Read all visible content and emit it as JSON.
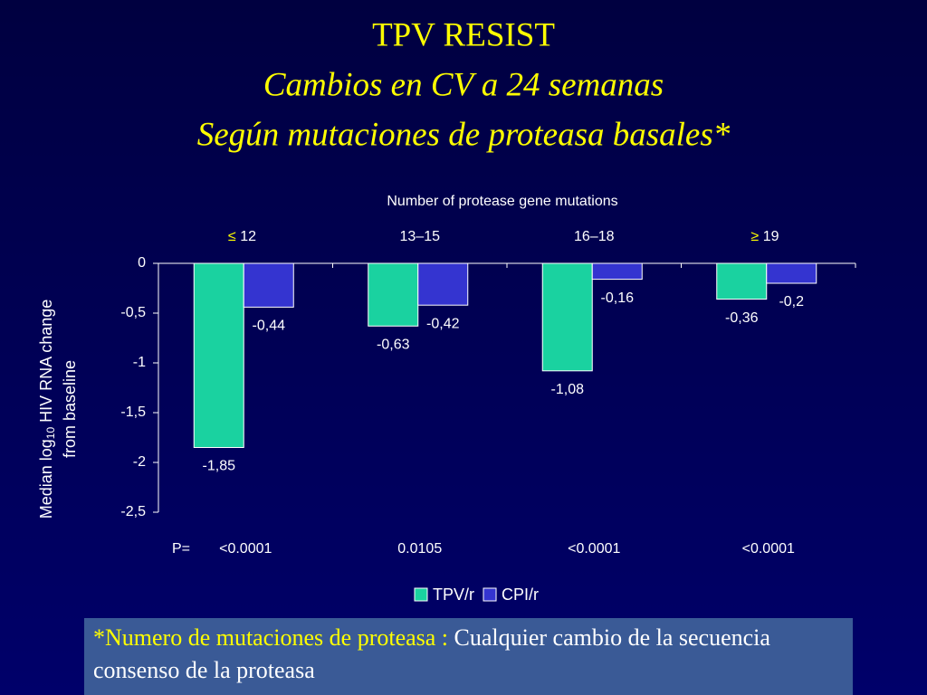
{
  "header": {
    "title": "TPV RESIST",
    "subtitle1": "Cambios en CV a  24  semanas",
    "subtitle2": "Según mutaciones de proteasa basales*"
  },
  "chart_data": {
    "type": "bar",
    "x_title": "Number of protease gene mutations",
    "category_prefixes": [
      "≤",
      null,
      null,
      "≥"
    ],
    "categories": [
      "12",
      "13–15",
      "16–18",
      "19"
    ],
    "series": [
      {
        "name": "TPV/r",
        "color": "#1ad2a0",
        "values": [
          -1.85,
          -0.63,
          -1.08,
          -0.36
        ],
        "value_labels": [
          "-1,85",
          "-0,63",
          "-1,08",
          "-0,36"
        ]
      },
      {
        "name": "CPI/r",
        "color": "#3434d0",
        "values": [
          -0.44,
          -0.42,
          -0.16,
          -0.2
        ],
        "value_labels": [
          "-0,44",
          "-0,42",
          "-0,16",
          "-0,2"
        ]
      }
    ],
    "ylim": [
      -2.5,
      0
    ],
    "yticks": [
      0,
      {
        "value": -0.5,
        "label": "-0,5"
      },
      -1,
      {
        "value": -1.5,
        "label": "-1,5"
      },
      -2,
      {
        "value": -2.5,
        "label": "-2,5"
      }
    ],
    "ylabel": {
      "pre": "Median log",
      "sub": "10",
      "post": " HIV RNA change",
      "line2": "from baseline"
    },
    "p_label": "P=",
    "p_values": [
      "<0.0001",
      "0.0105",
      "<0.0001",
      "<0.0001"
    ]
  },
  "footnote": {
    "highlight": "*Numero de mutaciones de proteasa :",
    "text": " Cualquier cambio de la secuencia consenso de la proteasa"
  }
}
